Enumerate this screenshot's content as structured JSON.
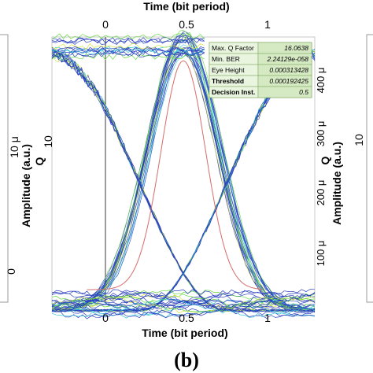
{
  "chart_data": {
    "type": "eye-diagram",
    "panel_label": "(b)",
    "xlabel_top": "Time (bit period)",
    "xlabel_bottom": "Time (bit period)",
    "x_ticks_top": [
      "0",
      "0.5",
      "1"
    ],
    "x_ticks_bottom": [
      "0",
      "0.5",
      "1"
    ],
    "xlim": [
      -0.25,
      1.25
    ],
    "ylabel_left_main": "Amplitude (a.u.)",
    "ylabel_left_sub": "Q",
    "y_ticks_left_rot": [
      "10 μ"
    ],
    "y_ticks_left": [
      "10",
      "0"
    ],
    "ylabel_right_main": "Amplitude (a.u.)",
    "ylabel_right_sub": "Q",
    "y_ticks_right": [
      "400 μ",
      "300 μ",
      "200 μ",
      "100 μ"
    ],
    "y_tick_right_rot": "10",
    "ylim": [
      0,
      450
    ],
    "eye": {
      "levels": [
        -10,
        440
      ],
      "crossings": [
        -0.25,
        0.5,
        1.25
      ],
      "fall_crossings": [
        0,
        0.7
      ],
      "q_curve_peak": 0.5,
      "colors": {
        "trace_main": "#2a3fbf",
        "trace_alt": "#36c7d6",
        "trace_green": "#63d93f",
        "trace_yellow": "#d8e63a",
        "q_curve": "#d76b6b",
        "table_header_bg": "#e9f5df",
        "table_value_bg": "#d5eac3"
      }
    },
    "table": [
      {
        "label": "Max. Q Factor",
        "value": "16.0638"
      },
      {
        "label": "Min. BER",
        "value": "2.24129e-058"
      },
      {
        "label": "Eye Height",
        "value": "0.000313428"
      },
      {
        "label": "Threshold",
        "value": "0.000192425"
      },
      {
        "label": "Decision Inst.",
        "value": "0.5"
      }
    ]
  }
}
